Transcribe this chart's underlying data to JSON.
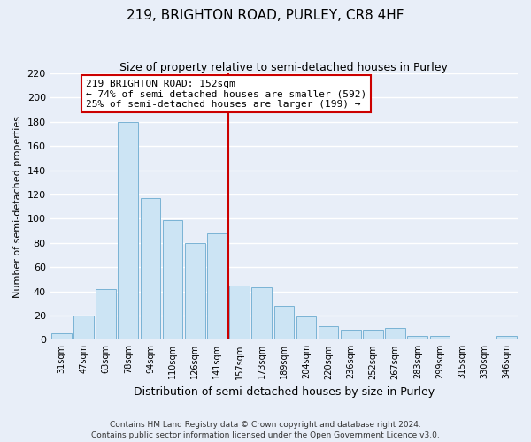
{
  "title": "219, BRIGHTON ROAD, PURLEY, CR8 4HF",
  "subtitle": "Size of property relative to semi-detached houses in Purley",
  "xlabel": "Distribution of semi-detached houses by size in Purley",
  "ylabel": "Number of semi-detached properties",
  "categories": [
    "31sqm",
    "47sqm",
    "63sqm",
    "78sqm",
    "94sqm",
    "110sqm",
    "126sqm",
    "141sqm",
    "157sqm",
    "173sqm",
    "189sqm",
    "204sqm",
    "220sqm",
    "236sqm",
    "252sqm",
    "267sqm",
    "283sqm",
    "299sqm",
    "315sqm",
    "330sqm",
    "346sqm"
  ],
  "values": [
    5,
    20,
    42,
    180,
    117,
    99,
    80,
    88,
    45,
    43,
    28,
    19,
    11,
    8,
    8,
    10,
    3,
    3,
    0,
    0,
    3
  ],
  "bar_color": "#cce4f4",
  "bar_edge_color": "#7ab3d4",
  "vline_color": "#cc0000",
  "annotation_line1": "219 BRIGHTON ROAD: 152sqm",
  "annotation_line2": "← 74% of semi-detached houses are smaller (592)",
  "annotation_line3": "25% of semi-detached houses are larger (199) →",
  "annotation_box_color": "white",
  "annotation_box_edge": "#cc0000",
  "ylim": [
    0,
    220
  ],
  "yticks": [
    0,
    20,
    40,
    60,
    80,
    100,
    120,
    140,
    160,
    180,
    200,
    220
  ],
  "footer_line1": "Contains HM Land Registry data © Crown copyright and database right 2024.",
  "footer_line2": "Contains public sector information licensed under the Open Government Licence v3.0.",
  "bg_color": "#e8eef8",
  "grid_color": "#ffffff"
}
